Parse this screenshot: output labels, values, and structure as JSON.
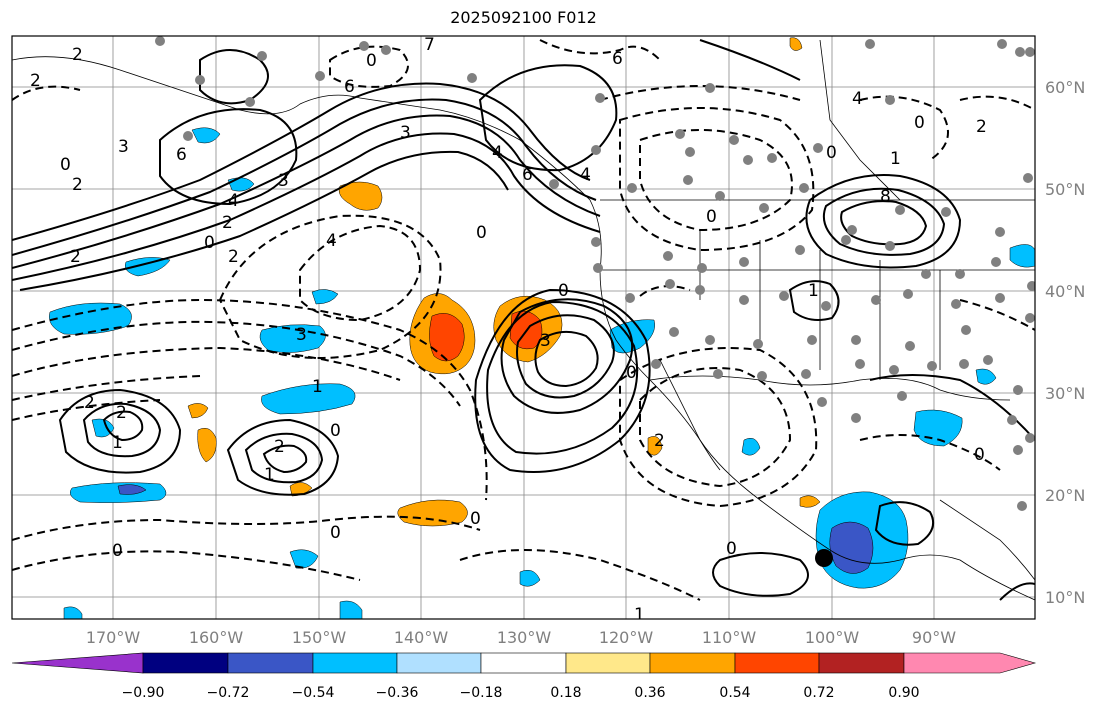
{
  "title": "2025092100 F012",
  "lon_labels": [
    "170°W",
    "160°W",
    "150°W",
    "140°W",
    "130°W",
    "120°W",
    "110°W",
    "100°W",
    "90°W"
  ],
  "lat_labels": [
    "60°N",
    "50°N",
    "40°N",
    "30°N",
    "20°N",
    "10°N"
  ],
  "colorbar": {
    "colors": [
      "#9932cc",
      "#000080",
      "#3a56c6",
      "#00bfff",
      "#b0e0ff",
      "#ffffff",
      "#ffe88a",
      "#ffa500",
      "#ff4500",
      "#b22222",
      "#ff88b0"
    ],
    "tick_labels": [
      "−0.90",
      "−0.72",
      "−0.54",
      "−0.36",
      "−0.18",
      "0.18",
      "0.36",
      "0.54",
      "0.72",
      "0.90"
    ]
  },
  "contour_labels": [
    "2",
    "2",
    "0",
    "2",
    "3",
    "6",
    "4",
    "2",
    "2",
    "0",
    "2",
    "3",
    "4",
    "0",
    "6",
    "4",
    "6",
    "0",
    "3",
    "3",
    "4",
    "0",
    "0",
    "3",
    "1",
    "2",
    "1",
    "2",
    "0",
    "2",
    "1",
    "0",
    "0",
    "2",
    "0",
    "0",
    "6",
    "7",
    "4",
    "2",
    "0",
    "8",
    "1",
    "0",
    "0",
    "1",
    "0",
    "1"
  ]
}
